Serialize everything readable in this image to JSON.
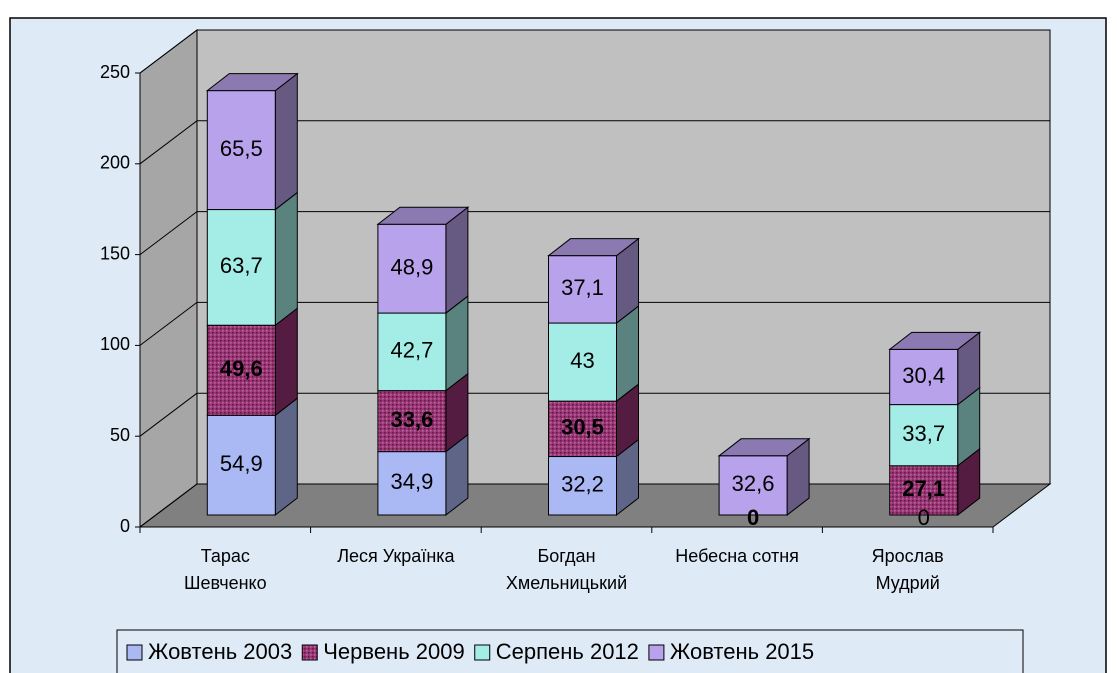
{
  "chart_data": {
    "type": "bar3d_stacked",
    "categories": [
      "Тарас\nШевченко",
      "Леся Українка",
      "Богдан\nХмельницький",
      "Небесна сотня",
      "Ярослав\nМудрий"
    ],
    "series": [
      {
        "name": "Жовтень 2003",
        "color": "#aab8f4",
        "values": [
          54.9,
          34.9,
          32.2,
          null,
          0
        ],
        "value_labels": [
          "54,9",
          "34,9",
          "32,2",
          null,
          "0"
        ]
      },
      {
        "name": "Червень 2009",
        "color": "#993374",
        "bold": true,
        "values": [
          49.6,
          33.6,
          30.5,
          0,
          27.1
        ],
        "value_labels": [
          "49,6",
          "33,6",
          "30,5",
          "0",
          "27,1"
        ]
      },
      {
        "name": "Серпень 2012",
        "color": "#a4ece6",
        "values": [
          63.7,
          42.7,
          43,
          null,
          33.7
        ],
        "value_labels": [
          "63,7",
          "42,7",
          "43",
          null,
          "33,7"
        ]
      },
      {
        "name": "Жовтень 2015",
        "color": "#b9a2ec",
        "values": [
          65.5,
          48.9,
          37.1,
          32.6,
          30.4
        ],
        "value_labels": [
          "65,5",
          "48,9",
          "37,1",
          "32,6",
          "30,4"
        ]
      }
    ],
    "ylim": [
      0,
      250
    ],
    "yticks": [
      0,
      50,
      100,
      150,
      200,
      250
    ],
    "grid": true,
    "legend": "bottom"
  }
}
